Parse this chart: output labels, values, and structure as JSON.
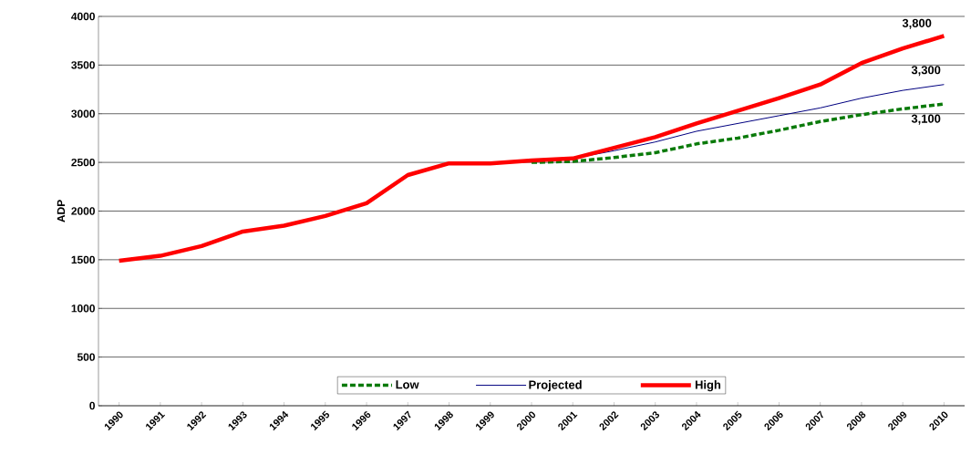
{
  "chart_data": {
    "type": "line",
    "ylabel": "ADP",
    "categories": [
      "1990",
      "1991",
      "1992",
      "1993",
      "1994",
      "1995",
      "1996",
      "1997",
      "1998",
      "1999",
      "2000",
      "2001",
      "2002",
      "2003",
      "2004",
      "2005",
      "2006",
      "2007",
      "2008",
      "2009",
      "2010"
    ],
    "series": [
      {
        "name": "Low",
        "color": "#0a7a0a",
        "line_style": "dashed",
        "values": [
          null,
          null,
          null,
          null,
          null,
          null,
          null,
          null,
          null,
          null,
          2500,
          2510,
          2550,
          2600,
          2690,
          2750,
          2830,
          2920,
          2990,
          3050,
          3100
        ]
      },
      {
        "name": "Projected",
        "color": "#000080",
        "line_style": "solid",
        "values": [
          null,
          null,
          null,
          null,
          null,
          null,
          null,
          null,
          null,
          null,
          null,
          2540,
          2620,
          2710,
          2820,
          2900,
          2980,
          3060,
          3160,
          3240,
          3300
        ]
      },
      {
        "name": "High",
        "color": "#ff0000",
        "line_style": "solid",
        "values": [
          1490,
          1540,
          1640,
          1790,
          1850,
          1950,
          2080,
          2370,
          2490,
          2490,
          2520,
          2540,
          2650,
          2760,
          2900,
          3030,
          3160,
          3300,
          3520,
          3670,
          3800
        ]
      }
    ],
    "ylim": [
      0,
      4000
    ],
    "yticks": [
      0,
      500,
      1000,
      1500,
      2000,
      2500,
      3000,
      3500,
      4000
    ],
    "grid": "y",
    "legend": "bottom",
    "marker": "none",
    "annotations": [
      {
        "text": "3,800",
        "x": "2010",
        "y": 3800
      },
      {
        "text": "3,300",
        "x": "2010",
        "y": 3300
      },
      {
        "text": "3,100",
        "x": "2010",
        "y": 3100
      }
    ]
  }
}
